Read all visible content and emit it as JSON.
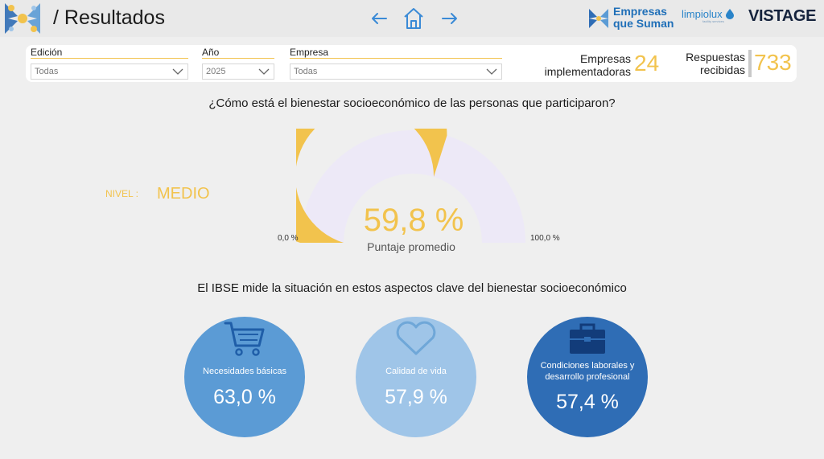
{
  "header": {
    "title": "/ Resultados",
    "nav": {
      "prev_icon": "arrow-left-icon",
      "home_icon": "home-icon",
      "next_icon": "arrow-right-icon"
    },
    "brands": {
      "empresas_que_suman_line1": "Empresas",
      "empresas_que_suman_line2": "que Suman",
      "limpiolux": "limpiolux",
      "limpiolux_sub": "facility services",
      "vistage": "VISTAGE"
    }
  },
  "filters": [
    {
      "label": "Edición",
      "value": "Todas"
    },
    {
      "label": "Año",
      "value": "2025"
    },
    {
      "label": "Empresa",
      "value": "Todas"
    }
  ],
  "kpis": {
    "empresas": {
      "label_line1": "Empresas",
      "label_line2": "implementadoras",
      "value": "24"
    },
    "respuestas": {
      "label_line1": "Respuestas",
      "label_line2": "recibidas",
      "value": "733"
    }
  },
  "question": "¿Cómo está el bienestar socioeconómico de las personas que participaron?",
  "nivel": {
    "label": "NIVEL :",
    "value": "MEDIO"
  },
  "gauge": {
    "value_text": "59,8 %",
    "fraction": 0.598,
    "caption": "Puntaje promedio",
    "min_label": "0,0 %",
    "max_label": "100,0 %",
    "fill_color": "#f2c34d",
    "track_color": "#ede9f7"
  },
  "subtitle": "El IBSE mide la situación en estos aspectos clave del bienestar socioeconómico",
  "aspects": [
    {
      "icon": "shopping-cart-icon",
      "label": "Necesidades básicas",
      "value": "63,0 %",
      "color": "#5b9bd5"
    },
    {
      "icon": "heart-icon",
      "label": "Calidad de vida",
      "value": "57,9 %",
      "color": "#9fc5e8"
    },
    {
      "icon": "briefcase-icon",
      "label_line1": "Condiciones laborales y",
      "label_line2": "desarrollo profesional",
      "value": "57,4 %",
      "color": "#2f6db5"
    }
  ],
  "colors": {
    "accent": "#f2c34d",
    "background": "#efefef"
  }
}
